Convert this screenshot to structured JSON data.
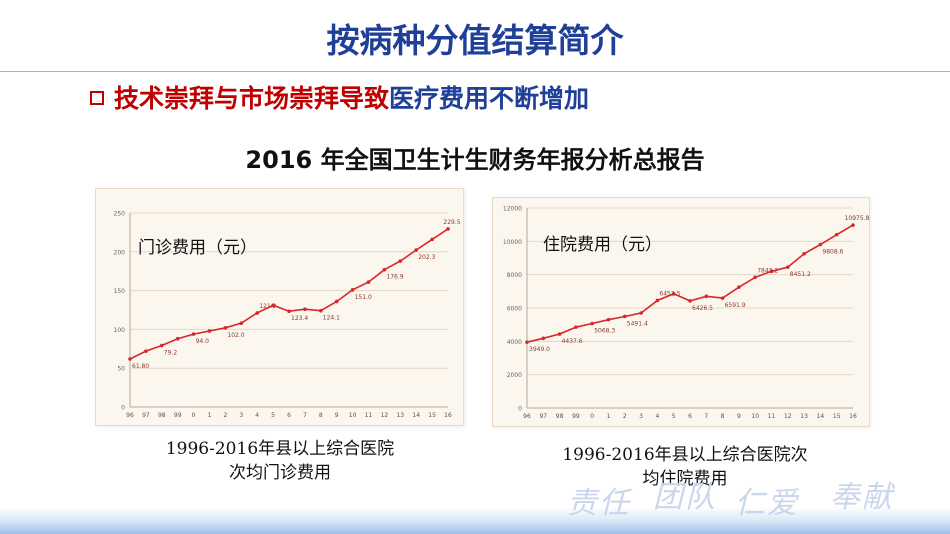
{
  "slide": {
    "title": "按病种分值结算简介",
    "subheading_red": "技术崇拜与市场崇拜导致",
    "subheading_blue": "医疗费用不断增加",
    "report_title": "2016 年全国卫生计生财务年报分析总报告",
    "caption_left_line1": "1996-2016年县以上综合医院",
    "caption_left_line2": "次均门诊费用",
    "caption_right_line1": "1996-2016年县以上综合医院次",
    "caption_right_line2": "均住院费用",
    "slogan_words": [
      "责任",
      "团队",
      "仁爱",
      "奉献"
    ]
  },
  "colors": {
    "title_blue": "#1f3f99",
    "accent_red": "#c00000",
    "line_red": "#d9262c",
    "panel_bg": "#fbf6ee",
    "grid": "#e3d9c8"
  },
  "chart_data": [
    {
      "type": "line",
      "title": "门诊费用（元）",
      "x": [
        "96",
        "97",
        "98",
        "99",
        "0",
        "1",
        "2",
        "3",
        "4",
        "5",
        "6",
        "7",
        "8",
        "9",
        "10",
        "11",
        "12",
        "13",
        "14",
        "15",
        "16"
      ],
      "series": [
        {
          "values": [
            61.8,
            72,
            79.2,
            88,
            94.0,
            98,
            102.0,
            108,
            121.2,
            131,
            123.4,
            126,
            124.1,
            136,
            151.0,
            161,
            176.9,
            188,
            202.3,
            216,
            229.5
          ]
        }
      ],
      "data_labels": [
        {
          "index": 0,
          "text": "61.80"
        },
        {
          "index": 2,
          "text": "79.2"
        },
        {
          "index": 4,
          "text": "94.0"
        },
        {
          "index": 6,
          "text": "102.0"
        },
        {
          "index": 8,
          "text": "121.2"
        },
        {
          "index": 10,
          "text": "123.4"
        },
        {
          "index": 12,
          "text": "124.1"
        },
        {
          "index": 14,
          "text": "151.0"
        },
        {
          "index": 16,
          "text": "176.9"
        },
        {
          "index": 18,
          "text": "202.3"
        },
        {
          "index": 20,
          "text": "229.5"
        }
      ],
      "yticks": [
        0,
        50,
        100,
        150,
        200,
        250
      ],
      "ylim": [
        0,
        250
      ],
      "grid": true
    },
    {
      "type": "line",
      "title": "住院费用（元）",
      "x": [
        "96",
        "97",
        "98",
        "99",
        "0",
        "1",
        "2",
        "3",
        "4",
        "5",
        "6",
        "7",
        "8",
        "9",
        "10",
        "11",
        "12",
        "13",
        "14",
        "15",
        "16"
      ],
      "series": [
        {
          "values": [
            3949.0,
            4180,
            4437.6,
            4850,
            5068.3,
            5300,
            5491.4,
            5700,
            6452.5,
            6850,
            6426.5,
            6700,
            6591.9,
            7250,
            7843.2,
            8200,
            8451.2,
            9250,
            9808.6,
            10400,
            10975.8
          ]
        }
      ],
      "data_labels": [
        {
          "index": 0,
          "text": "3949.0"
        },
        {
          "index": 2,
          "text": "4437.6"
        },
        {
          "index": 4,
          "text": "5068.3"
        },
        {
          "index": 6,
          "text": "5491.4"
        },
        {
          "index": 8,
          "text": "6452.5"
        },
        {
          "index": 10,
          "text": "6426.5"
        },
        {
          "index": 12,
          "text": "6591.9"
        },
        {
          "index": 14,
          "text": "7843.2"
        },
        {
          "index": 16,
          "text": "8451.2"
        },
        {
          "index": 18,
          "text": "9808.6"
        },
        {
          "index": 20,
          "text": "10975.8"
        }
      ],
      "yticks": [
        0,
        2000,
        4000,
        6000,
        8000,
        10000,
        12000
      ],
      "ylim": [
        0,
        12000
      ],
      "grid": true
    }
  ]
}
